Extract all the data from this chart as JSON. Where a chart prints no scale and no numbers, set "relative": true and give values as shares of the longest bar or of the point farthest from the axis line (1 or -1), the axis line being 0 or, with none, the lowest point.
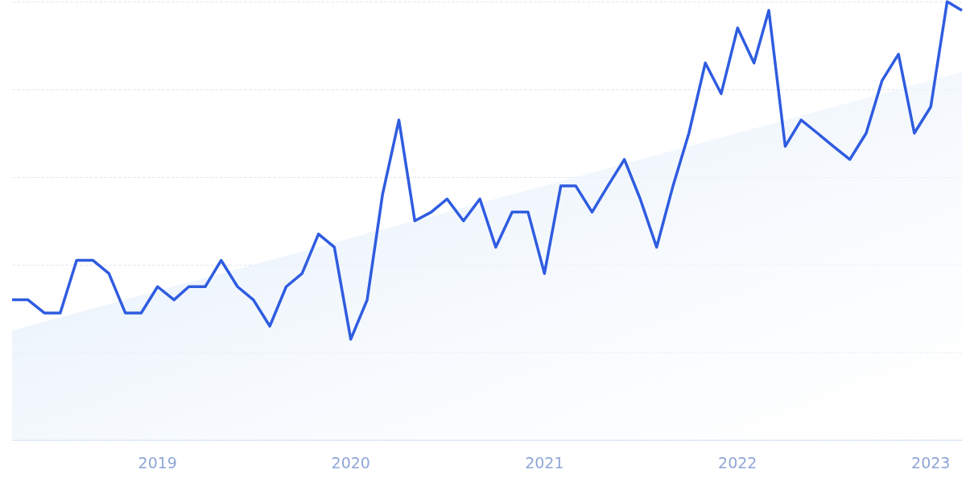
{
  "chart_data": {
    "type": "line",
    "relative": true,
    "grid": "y",
    "marker": "none",
    "line_style": "solid",
    "xlim": [
      "2018-04",
      "2023-03"
    ],
    "xticks": [
      {
        "value": "2019-01",
        "label": "2019"
      },
      {
        "value": "2020-01",
        "label": "2020"
      },
      {
        "value": "2021-01",
        "label": "2021"
      },
      {
        "value": "2022-01",
        "label": "2022"
      },
      {
        "value": "2023-01",
        "label": "2023"
      }
    ],
    "series": [
      {
        "type": "area",
        "color": "#dceafa",
        "x": [
          "2018-04",
          "2023-03"
        ],
        "values": [
          0.25,
          0.84
        ]
      },
      {
        "color": "#2f5ce0",
        "x": [
          "2018-04",
          "2018-05",
          "2018-06",
          "2018-07",
          "2018-08",
          "2018-09",
          "2018-10",
          "2018-11",
          "2018-12",
          "2019-01",
          "2019-02",
          "2019-03",
          "2019-04",
          "2019-05",
          "2019-06",
          "2019-07",
          "2019-08",
          "2019-09",
          "2019-10",
          "2019-11",
          "2019-12",
          "2020-01",
          "2020-02",
          "2020-03",
          "2020-04",
          "2020-05",
          "2020-06",
          "2020-07",
          "2020-08",
          "2020-09",
          "2020-10",
          "2020-11",
          "2020-12",
          "2021-01",
          "2021-02",
          "2021-03",
          "2021-04",
          "2021-05",
          "2021-06",
          "2021-07",
          "2021-08",
          "2021-09",
          "2021-10",
          "2021-11",
          "2021-12",
          "2022-01",
          "2022-02",
          "2022-03",
          "2022-04",
          "2022-05",
          "2022-06",
          "2022-07",
          "2022-08",
          "2022-09",
          "2022-10",
          "2022-11",
          "2022-12",
          "2023-01",
          "2023-02",
          "2023-03"
        ],
        "values": [
          0.32,
          0.32,
          0.29,
          0.29,
          0.41,
          0.41,
          0.38,
          0.29,
          0.29,
          0.35,
          0.32,
          0.35,
          0.35,
          0.41,
          0.35,
          0.32,
          0.26,
          0.35,
          0.38,
          0.47,
          0.44,
          0.23,
          0.32,
          0.56,
          0.73,
          0.5,
          0.52,
          0.55,
          0.5,
          0.55,
          0.44,
          0.52,
          0.52,
          0.38,
          0.58,
          0.58,
          0.52,
          0.58,
          0.64,
          0.55,
          0.44,
          0.58,
          0.7,
          0.86,
          0.79,
          0.94,
          0.86,
          0.98,
          0.67,
          0.73,
          0.7,
          0.67,
          0.64,
          0.7,
          0.82,
          0.88,
          0.7,
          0.76,
          1.0,
          0.98
        ]
      }
    ]
  }
}
